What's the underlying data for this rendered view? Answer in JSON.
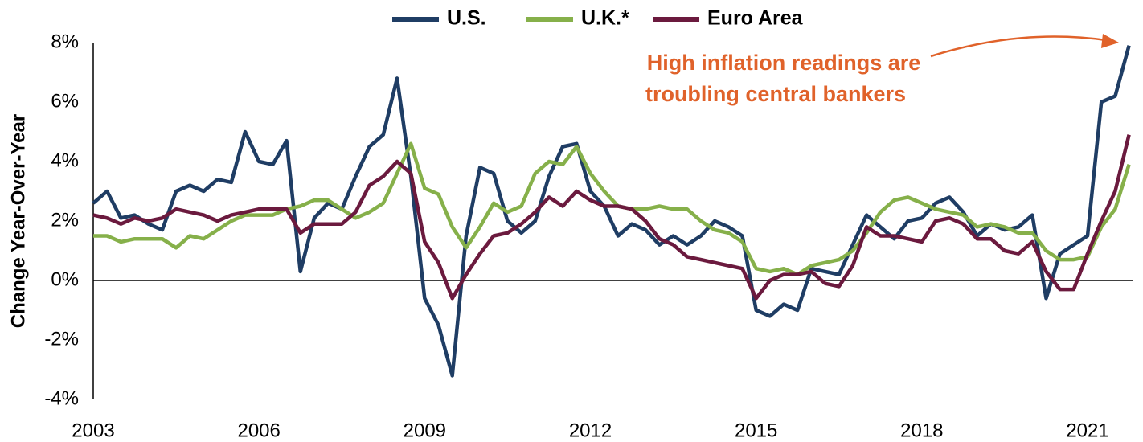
{
  "chart_data": {
    "type": "line",
    "y_label": "Change Year-Over-Year",
    "annotation": [
      "High inflation readings are",
      "troubling central bankers"
    ],
    "x": [
      2003,
      2003.25,
      2003.5,
      2003.75,
      2004,
      2004.25,
      2004.5,
      2004.75,
      2005,
      2005.25,
      2005.5,
      2005.75,
      2006,
      2006.25,
      2006.5,
      2006.75,
      2007,
      2007.25,
      2007.5,
      2007.75,
      2008,
      2008.25,
      2008.5,
      2008.75,
      2009,
      2009.25,
      2009.5,
      2009.75,
      2010,
      2010.25,
      2010.5,
      2010.75,
      2011,
      2011.25,
      2011.5,
      2011.75,
      2012,
      2012.25,
      2012.5,
      2012.75,
      2013,
      2013.25,
      2013.5,
      2013.75,
      2014,
      2014.25,
      2014.5,
      2014.75,
      2015,
      2015.25,
      2015.5,
      2015.75,
      2016,
      2016.25,
      2016.5,
      2016.75,
      2017,
      2017.25,
      2017.5,
      2017.75,
      2018,
      2018.25,
      2018.5,
      2018.75,
      2019,
      2019.25,
      2019.5,
      2019.75,
      2020,
      2020.25,
      2020.5,
      2020.75,
      2021,
      2021.25,
      2021.5,
      2021.75
    ],
    "series": [
      {
        "name": "U.S.",
        "color": "#1f3d64",
        "values": [
          2.6,
          3.0,
          2.1,
          2.2,
          1.9,
          1.7,
          3.0,
          3.2,
          3.0,
          3.4,
          3.3,
          5.0,
          4.0,
          3.9,
          4.7,
          0.3,
          2.1,
          2.6,
          2.4,
          3.5,
          4.5,
          4.9,
          6.8,
          3.5,
          -0.6,
          -1.5,
          -3.2,
          1.5,
          3.8,
          3.6,
          2.0,
          1.6,
          2.0,
          3.5,
          4.5,
          4.6,
          3.0,
          2.5,
          1.5,
          1.9,
          1.7,
          1.2,
          1.5,
          1.2,
          1.5,
          2.0,
          1.8,
          1.5,
          -1.0,
          -1.2,
          -0.8,
          -1.0,
          0.4,
          0.3,
          0.2,
          1.2,
          2.2,
          1.8,
          1.4,
          2.0,
          2.1,
          2.6,
          2.8,
          2.3,
          1.5,
          1.9,
          1.7,
          1.8,
          2.2,
          -0.6,
          0.9,
          1.2,
          1.5,
          6.0,
          6.2,
          7.9
        ]
      },
      {
        "name": "U.K.*",
        "color": "#86b04a",
        "values": [
          1.5,
          1.5,
          1.3,
          1.4,
          1.4,
          1.4,
          1.1,
          1.5,
          1.4,
          1.7,
          2.0,
          2.2,
          2.2,
          2.2,
          2.4,
          2.5,
          2.7,
          2.7,
          2.4,
          2.1,
          2.3,
          2.6,
          3.6,
          4.6,
          3.1,
          2.9,
          1.8,
          1.1,
          1.8,
          2.6,
          2.3,
          2.5,
          3.6,
          4.0,
          3.9,
          4.5,
          3.6,
          3.0,
          2.5,
          2.4,
          2.4,
          2.5,
          2.4,
          2.4,
          2.0,
          1.7,
          1.6,
          1.3,
          0.4,
          0.3,
          0.4,
          0.2,
          0.5,
          0.6,
          0.7,
          1.0,
          1.6,
          2.3,
          2.7,
          2.8,
          2.6,
          2.4,
          2.3,
          2.2,
          1.8,
          1.9,
          1.8,
          1.6,
          1.6,
          1.0,
          0.7,
          0.7,
          0.8,
          1.8,
          2.4,
          3.9
        ]
      },
      {
        "name": "Euro Area",
        "color": "#6b1a3e",
        "values": [
          2.2,
          2.1,
          1.9,
          2.1,
          2.0,
          2.1,
          2.4,
          2.3,
          2.2,
          2.0,
          2.2,
          2.3,
          2.4,
          2.4,
          2.4,
          1.6,
          1.9,
          1.9,
          1.9,
          2.3,
          3.2,
          3.5,
          4.0,
          3.6,
          1.3,
          0.6,
          -0.6,
          0.2,
          0.9,
          1.5,
          1.6,
          1.9,
          2.3,
          2.8,
          2.5,
          3.0,
          2.7,
          2.5,
          2.5,
          2.4,
          2.0,
          1.4,
          1.2,
          0.8,
          0.7,
          0.6,
          0.5,
          0.4,
          -0.6,
          0.0,
          0.2,
          0.2,
          0.3,
          -0.1,
          -0.2,
          0.5,
          1.8,
          1.5,
          1.5,
          1.4,
          1.3,
          2.0,
          2.1,
          1.9,
          1.4,
          1.4,
          1.0,
          0.9,
          1.3,
          0.3,
          -0.3,
          -0.3,
          0.9,
          2.0,
          3.0,
          4.9
        ]
      }
    ],
    "xlim": [
      2003,
      2021.8
    ],
    "xticks": [
      2003,
      2006,
      2009,
      2012,
      2015,
      2018,
      2021
    ],
    "ylim": [
      -4,
      8
    ],
    "yticks": [
      {
        "value": -4,
        "label": "-4%"
      },
      {
        "value": -2,
        "label": "-2%"
      },
      {
        "value": 0,
        "label": "0%"
      },
      {
        "value": 2,
        "label": "2%"
      },
      {
        "value": 4,
        "label": "4%"
      },
      {
        "value": 6,
        "label": "6%"
      },
      {
        "value": 8,
        "label": "8%"
      }
    ],
    "grid": false,
    "legend": "top"
  }
}
